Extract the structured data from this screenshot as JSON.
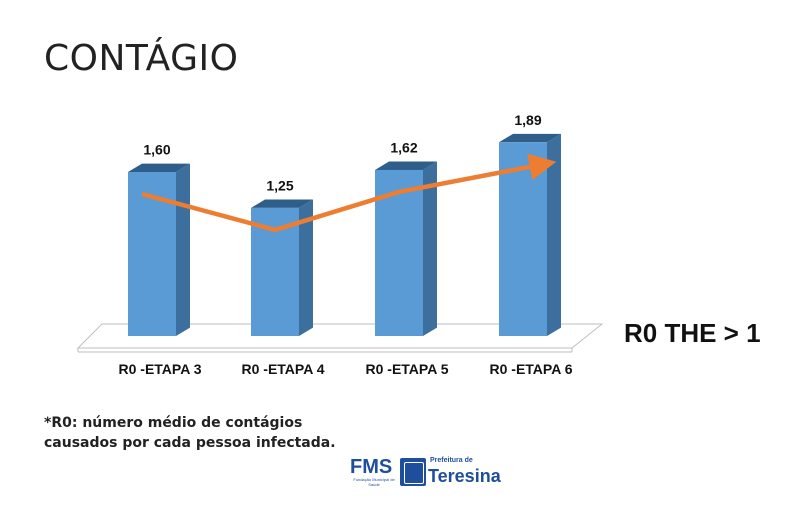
{
  "slide": {
    "title": "CONTÁGIO",
    "side_note": "R0 THE > 1",
    "footnote_line1": "*R0: número médio de contágios",
    "footnote_line2": "causados por cada pessoa infectada."
  },
  "logo": {
    "fms": "FMS",
    "fms_sub": "Fundação Municipal de Saúde",
    "prefeitura": "Prefeitura de",
    "city": "Teresina"
  },
  "colors": {
    "bar_front": "#5b9bd5",
    "bar_side": "#3d6f9e",
    "bar_top": "#2f5e8a",
    "trend_arrow": "#ed7d31",
    "floor": "#ffffff",
    "floor_edge": "#bfbfbf"
  },
  "chart_data": {
    "type": "bar",
    "categories": [
      "R0 -ETAPA 3",
      "R0 -ETAPA 4",
      "R0 -ETAPA 5",
      "R0 -ETAPA 6"
    ],
    "values": [
      1.6,
      1.25,
      1.62,
      1.89
    ],
    "value_labels": [
      "1,60",
      "1,25",
      "1,62",
      "1,89"
    ],
    "ylim": [
      0,
      2
    ],
    "grid": false,
    "legend": "none",
    "trend_arrow": true,
    "style": "3d-column"
  }
}
